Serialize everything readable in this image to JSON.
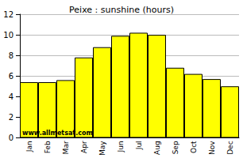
{
  "chart_data": {
    "type": "bar",
    "title": "Peixe : sunshine (hours)",
    "categories": [
      "Jan",
      "Feb",
      "Mar",
      "Apr",
      "May",
      "Jun",
      "Jul",
      "Aug",
      "Sep",
      "Oct",
      "Nov",
      "Dec"
    ],
    "values": [
      5.4,
      5.4,
      5.6,
      7.8,
      8.8,
      9.9,
      10.2,
      10.0,
      6.8,
      6.2,
      5.7,
      5.0
    ],
    "color": "#ffff00",
    "ylim": [
      0,
      12
    ],
    "yticks": [
      0,
      2,
      4,
      6,
      8,
      10,
      12
    ],
    "grid": true,
    "annotations": [
      "www.allmetsat.com"
    ]
  }
}
